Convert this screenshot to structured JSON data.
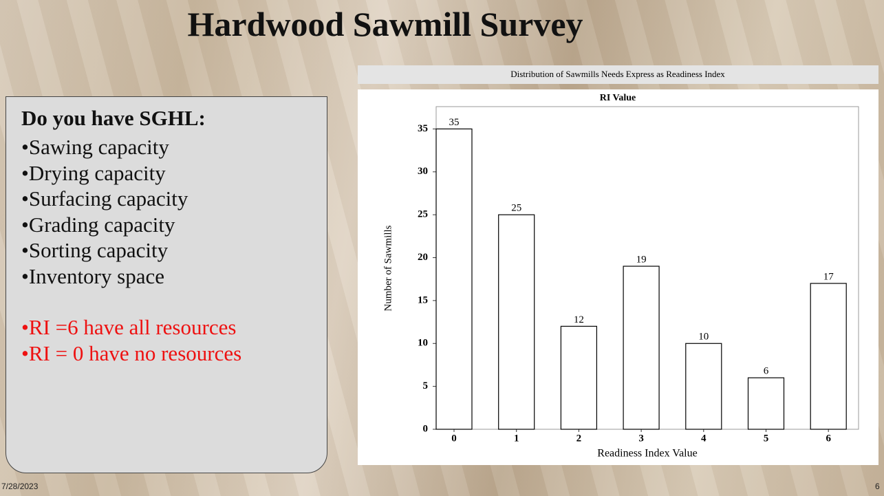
{
  "slide_title": "Hardwood Sawmill Survey",
  "panel": {
    "heading": "Do you have SGHL:",
    "items": [
      "Sawing capacity",
      "Drying capacity",
      "Surfacing capacity",
      "Grading capacity",
      "Sorting capacity",
      "Inventory space"
    ],
    "notes": [
      "RI =6 have all resources",
      "RI = 0 have no resources"
    ]
  },
  "chart_data": {
    "type": "bar",
    "subtitle": "Distribution of  Sawmills Needs Express as Readiness Index",
    "title": "RI Value",
    "x_label": "Readiness Index Value",
    "y_label": "Number of Sawmills",
    "categories": [
      "0",
      "1",
      "2",
      "3",
      "4",
      "5",
      "6"
    ],
    "values": [
      35,
      25,
      12,
      19,
      10,
      6,
      17
    ],
    "color": "#ffffff",
    "ylim": [
      0,
      37.6
    ],
    "yticks": [
      0,
      5,
      10,
      15,
      20,
      25,
      30,
      35
    ]
  },
  "footer": {
    "date": "7/28/2023",
    "page": "6"
  }
}
